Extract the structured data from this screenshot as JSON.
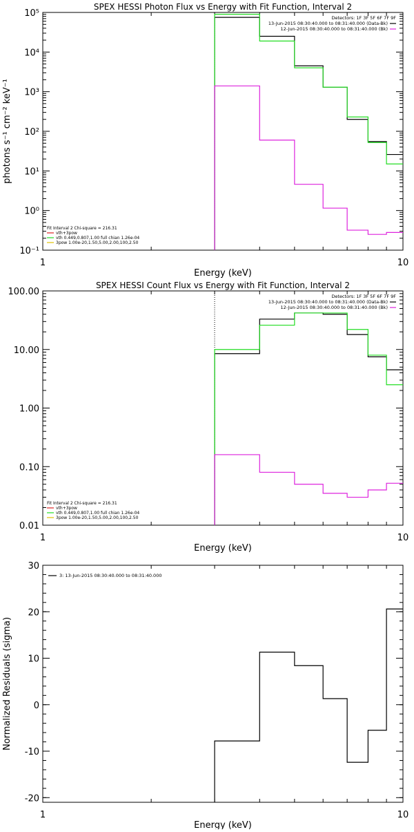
{
  "colors": {
    "data": "#000000",
    "fit": "#22dd22",
    "bkg": "#dd22dd",
    "spec_line": "#dd2222",
    "yellow": "#e0c000",
    "axis": "#000000"
  },
  "chart_data": [
    {
      "type": "line",
      "title": "SPEX HESSI Photon Flux vs Energy with Fit Function, Interval 2",
      "xlabel": "Energy (keV)",
      "ylabel": "photons s⁻¹ cm⁻² keV⁻¹",
      "xscale": "log",
      "yscale": "log",
      "xlim": [
        1,
        10
      ],
      "ylim": [
        0.1,
        100000
      ],
      "x_ticks": [
        1,
        10
      ],
      "x_tick_labels": [
        "1",
        "10"
      ],
      "y_ticks": [
        0.1,
        1,
        10,
        100,
        1000,
        10000,
        100000
      ],
      "y_tick_labels": [
        "10⁻¹",
        "10⁰",
        "10¹",
        "10²",
        "10³",
        "10⁴",
        "10⁵"
      ],
      "bin_edges": [
        3,
        4,
        5,
        6,
        7,
        8,
        9,
        10
      ],
      "vline": 3,
      "legend_top": {
        "detectors": "Detectors: 1F 3F 5F 6F 7F 9F",
        "entries": [
          {
            "text": "13-Jun-2015 08:30:40.000 to 08:31:40.000 (Data-Bk)",
            "color": "#000000"
          },
          {
            "text": "12-Jun-2015 08:30:40.000 to 08:31:40.000 (Bk)",
            "color": "#dd22dd"
          }
        ]
      },
      "legend_bottom": [
        {
          "text": "Fit Interval 2   Chi-square = 216.31",
          "color": "#000000"
        },
        {
          "text": "vth+3pow",
          "color": "#dd2222"
        },
        {
          "text": "vth 0.449,0.807,1.00  full chian 1.26e-04",
          "color": "#22dd22"
        },
        {
          "text": "3pow 1.00e-20,1.50,5.00,2.00,100,2.50",
          "color": "#e0c000"
        }
      ],
      "series": [
        {
          "name": "Data-Bk",
          "color": "#000000",
          "values": [
            75000,
            25000,
            4500,
            1300,
            200,
            55,
            26
          ]
        },
        {
          "name": "vth+3pow",
          "color": "#22dd22",
          "values": [
            90000,
            19000,
            4000,
            1300,
            230,
            52,
            15
          ]
        },
        {
          "name": "Bk",
          "color": "#dd22dd",
          "values": [
            1400,
            60,
            4.6,
            1.15,
            0.32,
            0.25,
            0.28
          ]
        }
      ]
    },
    {
      "type": "line",
      "title": "SPEX HESSI Count Flux vs Energy with Fit Function, Interval 2",
      "xlabel": "Energy (keV)",
      "ylabel": "",
      "xscale": "log",
      "yscale": "log",
      "xlim": [
        1,
        10
      ],
      "ylim": [
        0.01,
        100
      ],
      "x_ticks": [
        1,
        10
      ],
      "x_tick_labels": [
        "1",
        "10"
      ],
      "y_ticks": [
        0.01,
        0.1,
        1,
        10,
        100
      ],
      "y_tick_labels": [
        "0.01",
        "0.10",
        "1.00",
        "10.00",
        "100.00"
      ],
      "bin_edges": [
        3,
        4,
        5,
        6,
        7,
        8,
        9,
        10
      ],
      "vline": 3,
      "legend_top": {
        "detectors": "Detectors: 1F 3F 5F 6F 7F 9F",
        "entries": [
          {
            "text": "13-Jun-2015 08:30:40.000 to 08:31:40.000 (Data-Bk)",
            "color": "#000000"
          },
          {
            "text": "12-Jun-2015 08:30:40.000 to 08:31:40.000 (Bk)",
            "color": "#dd22dd"
          }
        ]
      },
      "legend_bottom": [
        {
          "text": "Fit Interval 2   Chi-square = 216.31",
          "color": "#000000"
        },
        {
          "text": "vth+3pow",
          "color": "#dd2222"
        },
        {
          "text": "vth 0.449,0.807,1.00  full chian 1.26e-04",
          "color": "#22dd22"
        },
        {
          "text": "3pow 1.00e-20,1.50,5.00,2.00,100,2.50",
          "color": "#e0c000"
        }
      ],
      "series": [
        {
          "name": "Data-Bk",
          "color": "#000000",
          "values": [
            8.5,
            33,
            42,
            40,
            18,
            7.5,
            4.5
          ]
        },
        {
          "name": "vth+3pow",
          "color": "#22dd22",
          "values": [
            10,
            26,
            42,
            42,
            22,
            8,
            2.5
          ]
        },
        {
          "name": "Bk",
          "color": "#dd22dd",
          "values": [
            0.16,
            0.08,
            0.05,
            0.035,
            0.03,
            0.04,
            0.052
          ]
        }
      ]
    },
    {
      "type": "line",
      "title": "",
      "xlabel": "Energy (keV)",
      "ylabel": "Normalized Residuals (sigma)",
      "xscale": "log",
      "yscale": "linear",
      "xlim": [
        1,
        10
      ],
      "ylim": [
        -21,
        30
      ],
      "x_ticks": [
        1,
        10
      ],
      "x_tick_labels": [
        "1",
        "10"
      ],
      "y_ticks": [
        -20,
        -10,
        0,
        10,
        20,
        30
      ],
      "y_tick_labels": [
        "-20",
        "-10",
        "0",
        "10",
        "20",
        "30"
      ],
      "bin_edges": [
        3,
        4,
        5,
        6,
        7,
        8,
        9,
        10
      ],
      "legend_top_left": "3: 13-Jun-2015 08:30:40.000 to 08:31:40.000",
      "series": [
        {
          "name": "residuals",
          "color": "#000000",
          "values": [
            -7.8,
            11.3,
            8.4,
            1.3,
            -12.4,
            -5.5,
            20.6
          ]
        }
      ]
    }
  ]
}
